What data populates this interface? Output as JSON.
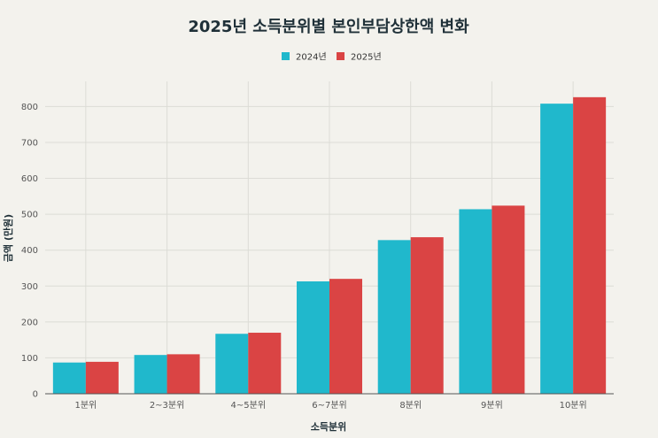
{
  "chart_data": {
    "type": "bar",
    "title": "2025년 소득분위별 본인부담상한액 변화",
    "xlabel": "소득분위",
    "ylabel": "금액 (만원)",
    "categories": [
      "1분위",
      "2~3분위",
      "4~5분위",
      "6~7분위",
      "8분위",
      "9분위",
      "10분위"
    ],
    "series": [
      {
        "name": "2024년",
        "color": "#20b8cc",
        "values": [
          87,
          108,
          167,
          313,
          428,
          514,
          808
        ]
      },
      {
        "name": "2025년",
        "color": "#da4444",
        "values": [
          89,
          110,
          170,
          320,
          436,
          524,
          826
        ]
      }
    ],
    "ylim": [
      0,
      870
    ],
    "yticks": [
      0,
      100,
      200,
      300,
      400,
      500,
      600,
      700,
      800
    ],
    "grid": true,
    "legend_position": "top-center"
  }
}
